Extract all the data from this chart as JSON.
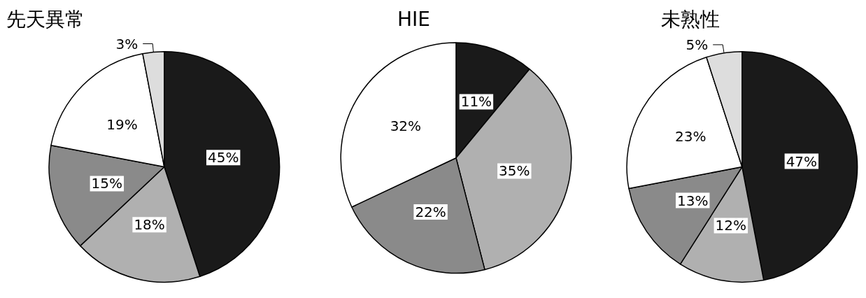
{
  "chart_data": [
    {
      "type": "pie",
      "title": "先天異常",
      "categories": [
        null,
        null,
        null,
        null,
        null
      ],
      "values": [
        45,
        18,
        15,
        19,
        3
      ],
      "colors": [
        "#1a1a1a",
        "#b0b0b0",
        "#8a8a8a",
        "#ffffff",
        "#dddddd"
      ],
      "value_labels": [
        "45%",
        "18%",
        "15%",
        "19%",
        "3%"
      ]
    },
    {
      "type": "pie",
      "title": "HIE",
      "categories": [
        null,
        null,
        null,
        null
      ],
      "values": [
        11,
        35,
        22,
        32
      ],
      "colors": [
        "#1a1a1a",
        "#b0b0b0",
        "#8a8a8a",
        "#ffffff"
      ],
      "value_labels": [
        "11%",
        "35%",
        "22%",
        "32%"
      ]
    },
    {
      "type": "pie",
      "title": "未熟性",
      "categories": [
        null,
        null,
        null,
        null,
        null
      ],
      "values": [
        47,
        12,
        13,
        23,
        5
      ],
      "colors": [
        "#1a1a1a",
        "#b0b0b0",
        "#8a8a8a",
        "#ffffff",
        "#dddddd"
      ],
      "value_labels": [
        "47%",
        "12%",
        "13%",
        "23%",
        "5%"
      ]
    }
  ]
}
